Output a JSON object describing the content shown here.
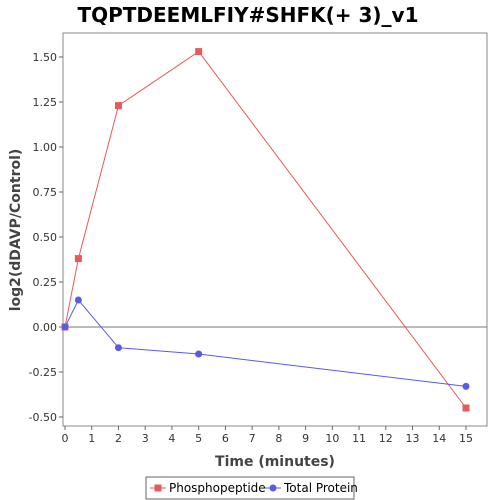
{
  "chart_data": {
    "type": "line",
    "title": "TQPTDEEMLFIY#SHFK(+ 3)_v1",
    "xlabel": "Time (minutes)",
    "ylabel": "log2(dDAVP/Control)",
    "xlim": [
      0,
      16
    ],
    "ylim": [
      -0.55,
      1.62
    ],
    "x_ticks": [
      "0",
      "1",
      "2",
      "3",
      "4",
      "5",
      "6",
      "7",
      "8",
      "9",
      "10",
      "11",
      "12",
      "13",
      "14",
      "15"
    ],
    "y_ticks": [
      "-0.50",
      "-0.25",
      "0.00",
      "0.25",
      "0.50",
      "0.75",
      "1.00",
      "1.25",
      "1.50"
    ],
    "grid": false,
    "zero_line": true,
    "legend_position": "bottom",
    "series": [
      {
        "name": "Phosphopeptide",
        "color": "#e85a5a",
        "marker": "square",
        "x": [
          0,
          0.5,
          2,
          5,
          15
        ],
        "y": [
          0.0,
          0.38,
          1.23,
          1.53,
          -0.45
        ]
      },
      {
        "name": "Total Protein",
        "color": "#5a5ae8",
        "marker": "circle",
        "x": [
          0,
          0.5,
          2,
          5,
          15
        ],
        "y": [
          0.0,
          0.15,
          -0.115,
          -0.15,
          -0.33
        ]
      }
    ]
  }
}
